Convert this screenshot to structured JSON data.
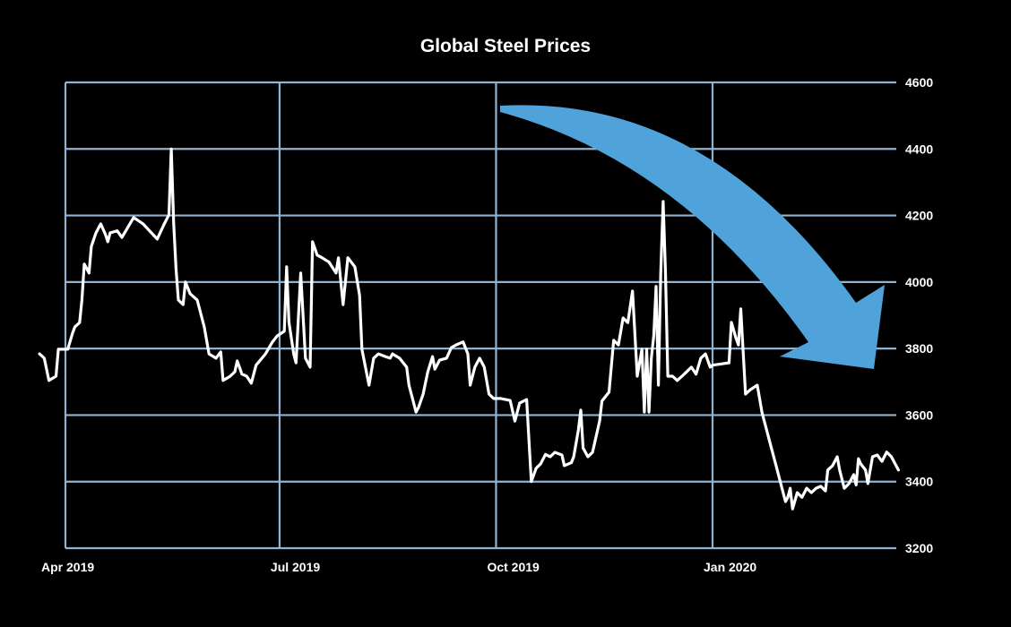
{
  "chart_data": {
    "type": "line",
    "title": "Global Steel Prices",
    "xlabel": "",
    "ylabel": "",
    "ylim": [
      3200,
      4600
    ],
    "yticks": [
      3200,
      3400,
      3600,
      3800,
      4000,
      4200,
      4400,
      4600
    ],
    "ytick_labels": [
      "3200",
      "3400",
      "3600",
      "3800",
      "4000",
      "4200",
      "4400",
      "4600"
    ],
    "y_axis_position": "right",
    "xticks": [
      "2019-04-01",
      "2019-07-01",
      "2019-10-01",
      "2020-01-01"
    ],
    "xtick_labels": [
      "Apr 2019",
      "Jul 2019",
      "Oct 2019",
      "Jan 2020"
    ],
    "grid": true,
    "colors": {
      "background": "#000000",
      "line": "#ffffff",
      "grid": "#8fb3d0",
      "arrow": "#4fa3da"
    },
    "annotation": {
      "type": "downward-trend-arrow",
      "color": "#4fa3da",
      "from": [
        "2019-10-01",
        4530
      ],
      "to": [
        "2020-03-18",
        3740
      ]
    },
    "series": [
      {
        "x": [
          "2019-03-21",
          "2019-03-23",
          "2019-03-25",
          "2019-03-28",
          "2019-03-29",
          "2019-04-02",
          "2019-04-04",
          "2019-04-05",
          "2019-04-07",
          "2019-04-08",
          "2019-04-09",
          "2019-04-11",
          "2019-04-12",
          "2019-04-14",
          "2019-04-16",
          "2019-04-18",
          "2019-04-19",
          "2019-04-20",
          "2019-04-23",
          "2019-04-25",
          "2019-04-30",
          "2019-05-04",
          "2019-05-10",
          "2019-05-13",
          "2019-05-15",
          "2019-05-16",
          "2019-05-17",
          "2019-05-18",
          "2019-05-19",
          "2019-05-21",
          "2019-05-22",
          "2019-05-24",
          "2019-05-27",
          "2019-05-30",
          "2019-06-01",
          "2019-06-04",
          "2019-06-06",
          "2019-06-07",
          "2019-06-10",
          "2019-06-12",
          "2019-06-13",
          "2019-06-15",
          "2019-06-17",
          "2019-06-19",
          "2019-06-21",
          "2019-06-25",
          "2019-06-28",
          "2019-06-30",
          "2019-07-03",
          "2019-07-04",
          "2019-07-05",
          "2019-07-07",
          "2019-07-08",
          "2019-07-10",
          "2019-07-12",
          "2019-07-14",
          "2019-07-15",
          "2019-07-17",
          "2019-07-19",
          "2019-07-22",
          "2019-07-25",
          "2019-07-26",
          "2019-07-28",
          "2019-07-30",
          "2019-08-02",
          "2019-08-04",
          "2019-08-05",
          "2019-08-08",
          "2019-08-10",
          "2019-08-12",
          "2019-08-15",
          "2019-08-17",
          "2019-08-18",
          "2019-08-21",
          "2019-08-24",
          "2019-08-25",
          "2019-08-28",
          "2019-08-29",
          "2019-08-31",
          "2019-09-02",
          "2019-09-04",
          "2019-09-05",
          "2019-09-07",
          "2019-09-10",
          "2019-09-12",
          "2019-09-14",
          "2019-09-17",
          "2019-09-19",
          "2019-09-20",
          "2019-09-22",
          "2019-09-24",
          "2019-09-26",
          "2019-09-28",
          "2019-09-30",
          "2019-10-03",
          "2019-10-07",
          "2019-10-09",
          "2019-10-11",
          "2019-10-14",
          "2019-10-16",
          "2019-10-18",
          "2019-10-20",
          "2019-10-22",
          "2019-10-24",
          "2019-10-26",
          "2019-10-29",
          "2019-10-30",
          "2019-11-01",
          "2019-11-02",
          "2019-11-03",
          "2019-11-05",
          "2019-11-06",
          "2019-11-07",
          "2019-11-09",
          "2019-11-11",
          "2019-11-14",
          "2019-11-15",
          "2019-11-18",
          "2019-11-20",
          "2019-11-22",
          "2019-11-24",
          "2019-11-26",
          "2019-11-28",
          "2019-11-30",
          "2019-12-02",
          "2019-12-03",
          "2019-12-04",
          "2019-12-05",
          "2019-12-06",
          "2019-12-07",
          "2019-12-08",
          "2019-12-09",
          "2019-12-10",
          "2019-12-11",
          "2019-12-12",
          "2019-12-13",
          "2019-12-15",
          "2019-12-17",
          "2019-12-19",
          "2019-12-21",
          "2019-12-23",
          "2019-12-25",
          "2019-12-27",
          "2019-12-29",
          "2019-12-31",
          "2020-01-01",
          "2020-01-04",
          "2020-01-08",
          "2020-01-09",
          "2020-01-11",
          "2020-01-12",
          "2020-01-13",
          "2020-01-15",
          "2020-01-17",
          "2020-01-20",
          "2020-01-21",
          "2020-01-22",
          "2020-01-25",
          "2020-01-28",
          "2020-01-30",
          "2020-02-01",
          "2020-02-02",
          "2020-02-03",
          "2020-02-04",
          "2020-02-06",
          "2020-02-08",
          "2020-02-10",
          "2020-02-12",
          "2020-02-14",
          "2020-02-16",
          "2020-02-18",
          "2020-02-19",
          "2020-02-21",
          "2020-02-23",
          "2020-02-24",
          "2020-02-26",
          "2020-02-28",
          "2020-03-01",
          "2020-03-02",
          "2020-03-03",
          "2020-03-04",
          "2020-03-06",
          "2020-03-07",
          "2020-03-09",
          "2020-03-11",
          "2020-03-13",
          "2020-03-15",
          "2020-03-17",
          "2020-03-19",
          "2020-03-20"
        ],
        "y": [
          3784,
          3771,
          3704,
          3717,
          3798,
          3798,
          3846,
          3865,
          3878,
          3946,
          4054,
          4027,
          4107,
          4148,
          4175,
          4143,
          4121,
          4148,
          4154,
          4134,
          4194,
          4175,
          4129,
          4175,
          4202,
          4400,
          4175,
          4040,
          3946,
          3932,
          4000,
          3965,
          3946,
          3865,
          3784,
          3771,
          3790,
          3704,
          3717,
          3730,
          3763,
          3723,
          3717,
          3696,
          3750,
          3784,
          3820,
          3838,
          3852,
          4046,
          3879,
          3784,
          3757,
          4027,
          3771,
          3744,
          4121,
          4081,
          4073,
          4060,
          4027,
          4073,
          3932,
          4073,
          4046,
          3960,
          3798,
          3690,
          3771,
          3784,
          3776,
          3771,
          3784,
          3771,
          3744,
          3690,
          3609,
          3622,
          3663,
          3730,
          3776,
          3738,
          3765,
          3771,
          3803,
          3811,
          3820,
          3784,
          3690,
          3744,
          3771,
          3744,
          3663,
          3650,
          3650,
          3644,
          3582,
          3636,
          3647,
          3400,
          3440,
          3454,
          3482,
          3475,
          3488,
          3480,
          3448,
          3454,
          3457,
          3475,
          3555,
          3615,
          3501,
          3475,
          3488,
          3582,
          3642,
          3669,
          3825,
          3811,
          3892,
          3878,
          3973,
          3717,
          3798,
          3609,
          3798,
          3609,
          3771,
          3838,
          3987,
          3690,
          4027,
          4242,
          4027,
          3717,
          3717,
          3704,
          3717,
          3730,
          3744,
          3723,
          3771,
          3784,
          3744,
          3750,
          3753,
          3757,
          3879,
          3830,
          3811,
          3919,
          3663,
          3676,
          3690,
          3650,
          3609,
          3528,
          3448,
          3394,
          3340,
          3353,
          3380,
          3318,
          3367,
          3353,
          3380,
          3367,
          3380,
          3386,
          3372,
          3435,
          3448,
          3475,
          3435,
          3380,
          3394,
          3421,
          3390,
          3469,
          3453,
          3435,
          3394,
          3475,
          3480,
          3461,
          3489,
          3475,
          3448,
          3435
        ]
      }
    ]
  }
}
